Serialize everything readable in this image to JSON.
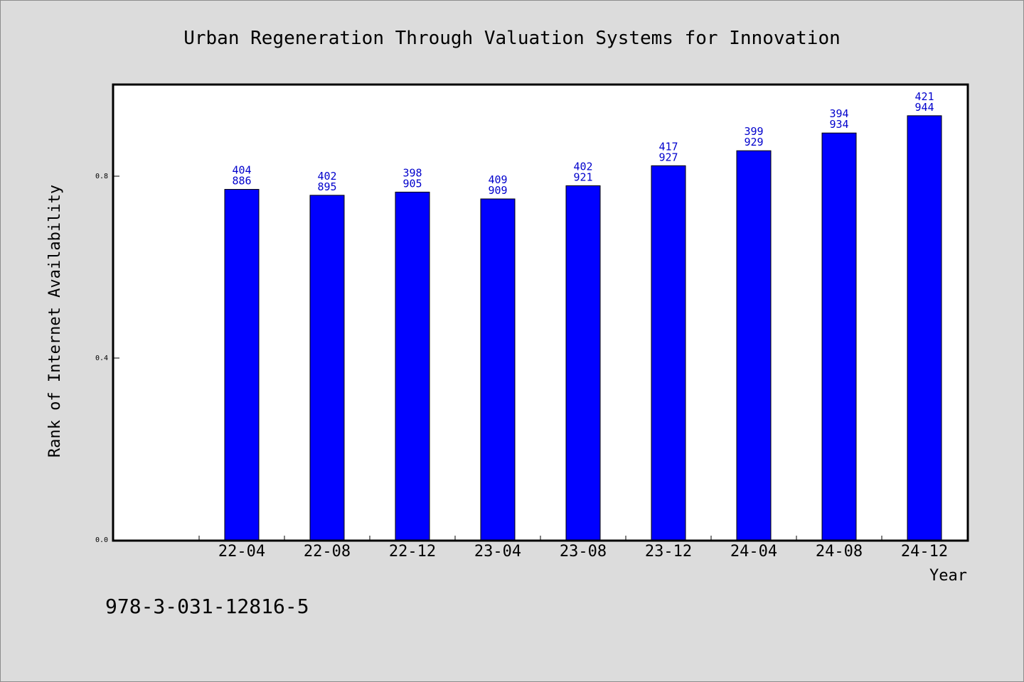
{
  "chart_data": {
    "type": "bar",
    "title": "Urban Regeneration Through Valuation Systems for Innovation",
    "xlabel": "Year",
    "ylabel": "Rank of Internet Availability",
    "ylim": [
      0,
      1.0
    ],
    "yticks": [
      "0.0",
      "0.4",
      "0.8"
    ],
    "grid": false,
    "legend": "none",
    "categories": [
      "22-04",
      "22-08",
      "22-12",
      "23-04",
      "23-08",
      "23-12",
      "24-04",
      "24-08",
      "24-12"
    ],
    "values": [
      0.771,
      0.758,
      0.765,
      0.75,
      0.779,
      0.823,
      0.856,
      0.895,
      0.933
    ],
    "labels_top": [
      "404",
      "402",
      "398",
      "409",
      "402",
      "417",
      "399",
      "394",
      "421"
    ],
    "labels_bottom": [
      "886",
      "895",
      "905",
      "909",
      "921",
      "927",
      "929",
      "934",
      "944"
    ],
    "bar_color": "#0000ff",
    "label_color": "#0000cc"
  },
  "footer_text": "978-3-031-12816-5"
}
